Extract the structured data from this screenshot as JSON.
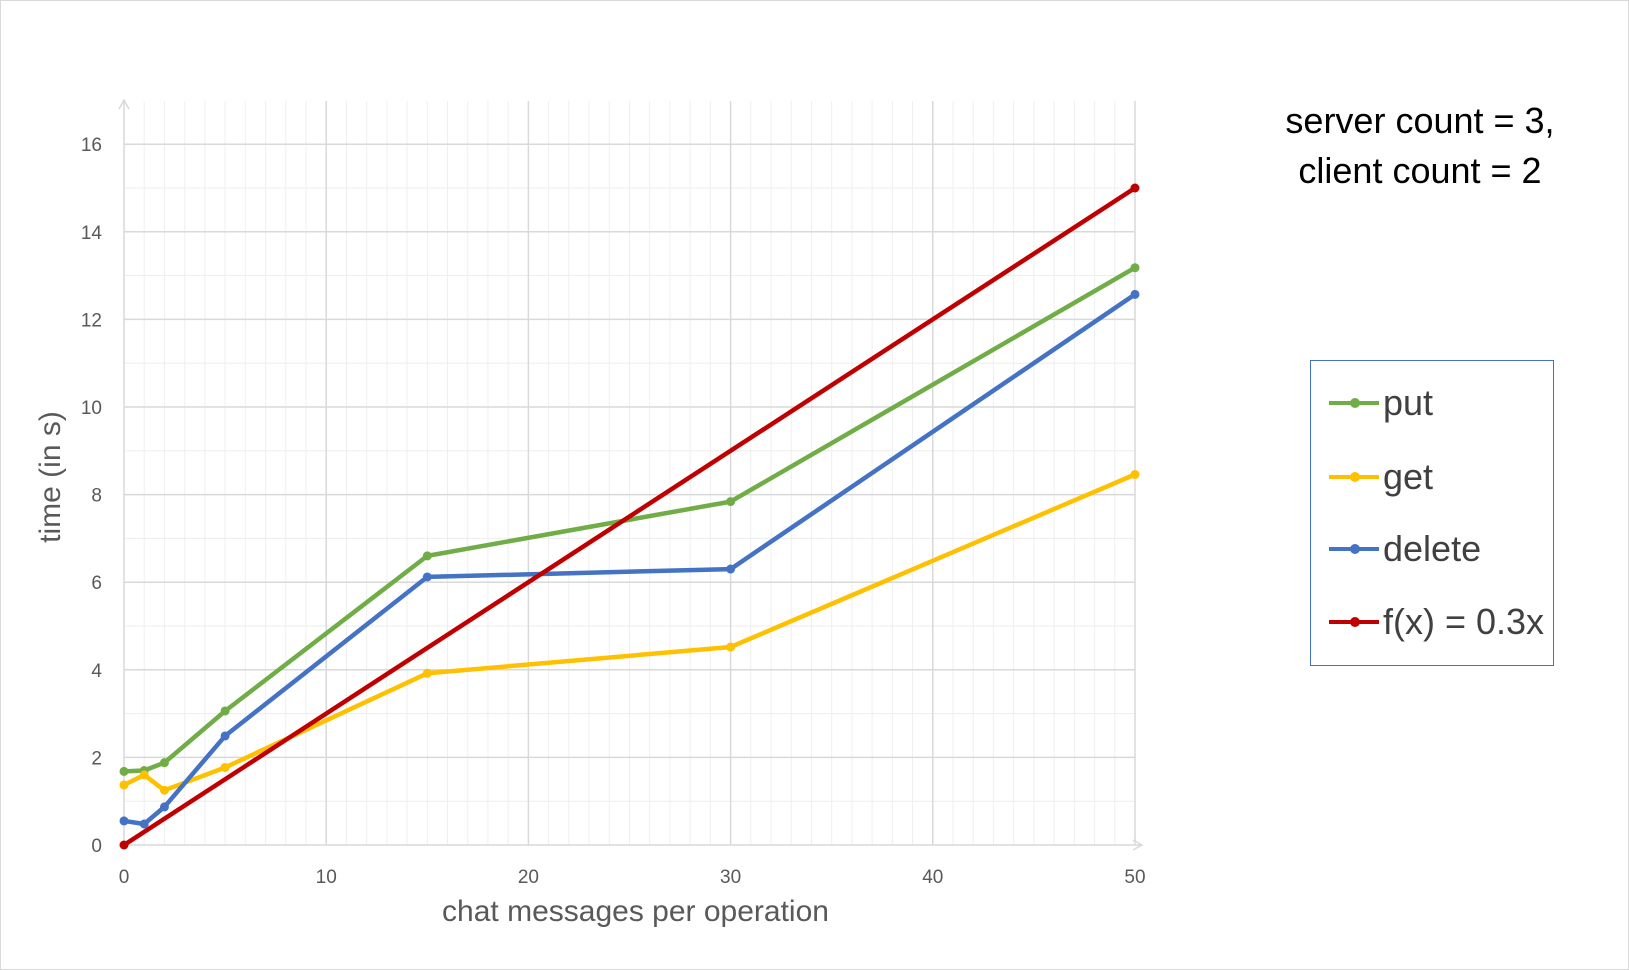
{
  "chart_data": {
    "type": "line",
    "xlabel": "chat messages per operation",
    "ylabel": "time (in s)",
    "xlim": [
      0,
      50
    ],
    "ylim": [
      0,
      17
    ],
    "xticks": [
      0,
      10,
      20,
      30,
      40,
      50
    ],
    "yticks": [
      0,
      2,
      4,
      6,
      8,
      10,
      12,
      14,
      16
    ],
    "grid": true,
    "legend_position": "right",
    "annotation_lines": [
      "server count = 3,",
      "client count = 2"
    ],
    "series": [
      {
        "name": "put",
        "color": "#70ad47",
        "points": [
          [
            0,
            1.68
          ],
          [
            1,
            1.7
          ],
          [
            2,
            1.88
          ],
          [
            5,
            3.06
          ],
          [
            15,
            6.6
          ],
          [
            30,
            7.84
          ],
          [
            50,
            13.18
          ]
        ]
      },
      {
        "name": "get",
        "color": "#ffc000",
        "points": [
          [
            0,
            1.37
          ],
          [
            1,
            1.6
          ],
          [
            2,
            1.25
          ],
          [
            5,
            1.77
          ],
          [
            15,
            3.92
          ],
          [
            30,
            4.52
          ],
          [
            50,
            8.46
          ]
        ]
      },
      {
        "name": "delete",
        "color": "#4472c4",
        "points": [
          [
            0,
            0.55
          ],
          [
            1,
            0.48
          ],
          [
            2,
            0.87
          ],
          [
            5,
            2.49
          ],
          [
            15,
            6.12
          ],
          [
            30,
            6.3
          ],
          [
            50,
            12.57
          ]
        ]
      },
      {
        "name": "f(x) = 0.3x",
        "color": "#c00000",
        "points": [
          [
            0,
            0
          ],
          [
            50,
            15
          ]
        ]
      }
    ]
  }
}
